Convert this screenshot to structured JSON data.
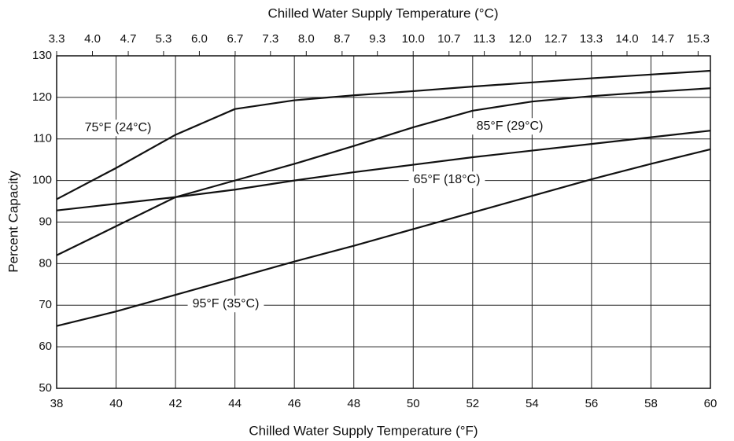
{
  "chart_data": {
    "type": "line",
    "title": "Chilled Water Supply Temperature (°C)",
    "xlabel": "Chilled Water Supply Temperature (°F)",
    "ylabel": "Percent Capacity",
    "x": [
      38,
      40,
      42,
      44,
      46,
      48,
      50,
      52,
      54,
      56,
      58,
      60
    ],
    "xlim": [
      38,
      60
    ],
    "xticks": [
      38,
      40,
      42,
      44,
      46,
      48,
      50,
      52,
      54,
      56,
      58,
      60
    ],
    "ylim": [
      50,
      130
    ],
    "yticks": [
      50,
      60,
      70,
      80,
      90,
      100,
      110,
      120,
      130
    ],
    "x2lim": [
      3.33,
      15.56
    ],
    "x2ticks": [
      {
        "value": 3.33,
        "label": "3.3"
      },
      {
        "value": 4.0,
        "label": "4.0"
      },
      {
        "value": 4.67,
        "label": "4.7"
      },
      {
        "value": 5.33,
        "label": "5.3"
      },
      {
        "value": 6.0,
        "label": "6.0"
      },
      {
        "value": 6.67,
        "label": "6.7"
      },
      {
        "value": 7.33,
        "label": "7.3"
      },
      {
        "value": 8.0,
        "label": "8.0"
      },
      {
        "value": 8.67,
        "label": "8.7"
      },
      {
        "value": 9.33,
        "label": "9.3"
      },
      {
        "value": 10.0,
        "label": "10.0"
      },
      {
        "value": 10.67,
        "label": "10.7"
      },
      {
        "value": 11.33,
        "label": "11.3"
      },
      {
        "value": 12.0,
        "label": "12.0"
      },
      {
        "value": 12.67,
        "label": "12.7"
      },
      {
        "value": 13.33,
        "label": "13.3"
      },
      {
        "value": 14.0,
        "label": "14.0"
      },
      {
        "value": 14.67,
        "label": "14.7"
      },
      {
        "value": 15.33,
        "label": "15.3"
      }
    ],
    "grid": true,
    "series": [
      {
        "name": "75°F (24°C)",
        "color": "#111111",
        "values": [
          95.5,
          103,
          111,
          117.2,
          119.3,
          120.5,
          121.5,
          122.6,
          123.6,
          124.6,
          125.5,
          126.4
        ]
      },
      {
        "name": "85°F (29°C)",
        "color": "#111111",
        "values": [
          82,
          89,
          96,
          100,
          104,
          108.3,
          112.8,
          116.8,
          119,
          120.3,
          121.3,
          122.2
        ]
      },
      {
        "name": "65°F (18°C)",
        "color": "#111111",
        "values": [
          92.8,
          94.4,
          96,
          97.8,
          100,
          102,
          103.8,
          105.6,
          107.2,
          108.8,
          110.4,
          112
        ]
      },
      {
        "name": "95°F (35°C)",
        "color": "#111111",
        "values": [
          65,
          68.5,
          72.5,
          76.5,
          80.5,
          84.3,
          88.3,
          92.3,
          96.3,
          100.3,
          104,
          107.5
        ]
      }
    ]
  }
}
